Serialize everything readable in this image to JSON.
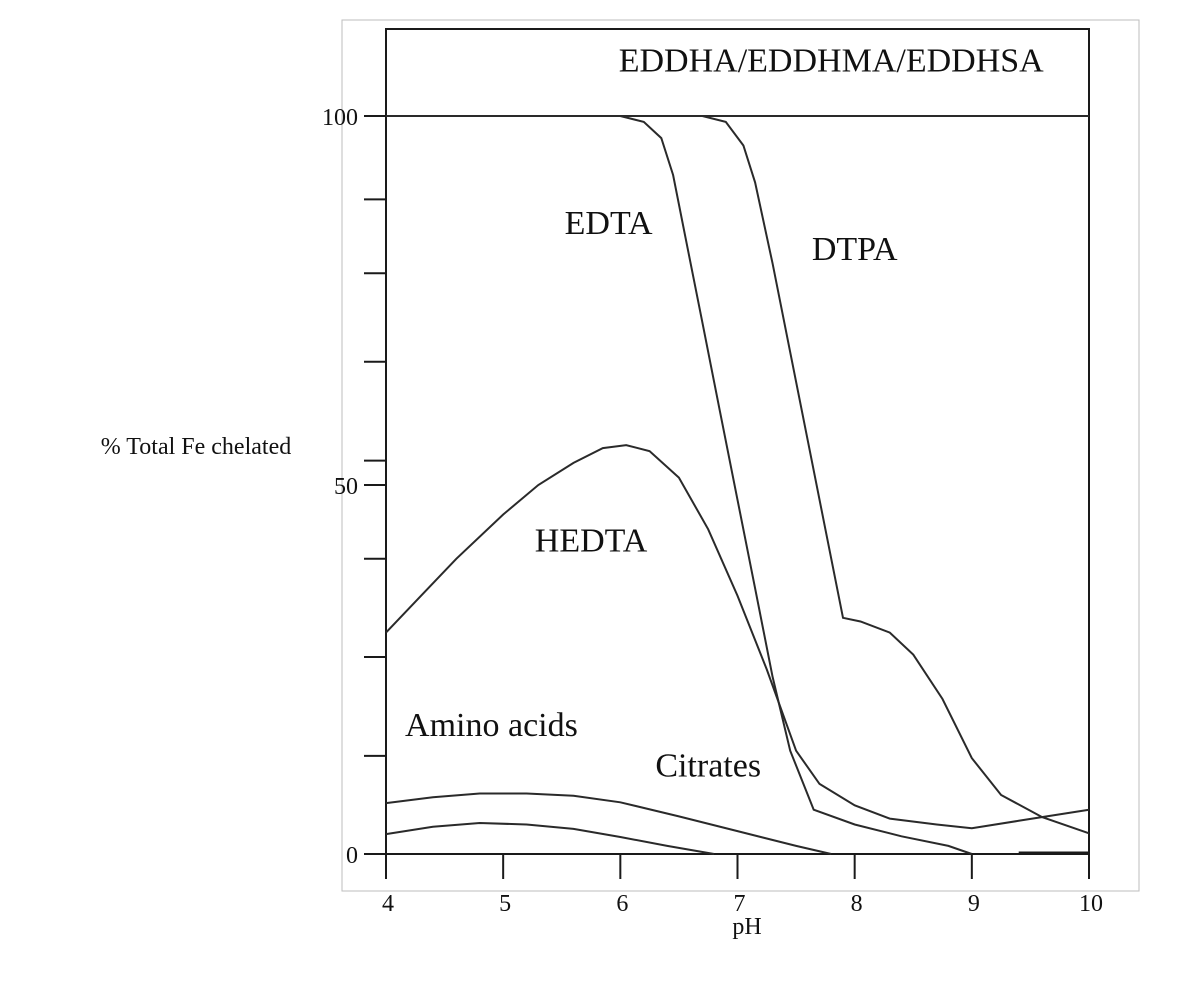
{
  "chart_data": {
    "type": "line",
    "xlabel": "pH",
    "ylabel": "% Total Fe chelated",
    "xlim": [
      4,
      10
    ],
    "ylim": [
      0,
      100
    ],
    "x_ticks": [
      4,
      5,
      6,
      7,
      8,
      9,
      10
    ],
    "x_tick_labels": [
      "4",
      "5",
      "6",
      "7",
      "8",
      "9",
      "10"
    ],
    "y_tick_values": [
      0,
      13.3,
      26.7,
      40,
      50,
      53.3,
      66.7,
      78.7,
      88.7,
      100
    ],
    "y_tick_labels": [
      {
        "value": 0,
        "label": "0"
      },
      {
        "value": 50,
        "label": "50"
      },
      {
        "value": 100,
        "label": "100"
      }
    ],
    "grid": false,
    "series": [
      {
        "name": "EDDHA/EDDHMA/EDDHSA",
        "points": [
          [
            4,
            100
          ],
          [
            10,
            100
          ]
        ]
      },
      {
        "name": "EDTA",
        "points": [
          [
            6.0,
            100
          ],
          [
            6.2,
            99.2
          ],
          [
            6.35,
            97
          ],
          [
            6.45,
            92
          ],
          [
            6.55,
            84
          ],
          [
            6.7,
            72
          ],
          [
            6.85,
            60
          ],
          [
            7.0,
            48
          ],
          [
            7.15,
            36
          ],
          [
            7.3,
            24
          ],
          [
            7.45,
            14
          ],
          [
            7.65,
            6
          ],
          [
            8.0,
            4
          ],
          [
            8.4,
            2.4
          ],
          [
            8.8,
            1.1
          ],
          [
            9.0,
            0
          ]
        ]
      },
      {
        "name": "DTPA",
        "points": [
          [
            6.7,
            100
          ],
          [
            6.9,
            99.2
          ],
          [
            7.05,
            96
          ],
          [
            7.15,
            91
          ],
          [
            7.3,
            80
          ],
          [
            7.45,
            68
          ],
          [
            7.6,
            56
          ],
          [
            7.75,
            44
          ],
          [
            7.9,
            32
          ],
          [
            8.05,
            31.5
          ],
          [
            8.3,
            30
          ],
          [
            8.5,
            27
          ],
          [
            8.75,
            21
          ],
          [
            9.0,
            13
          ],
          [
            9.25,
            8
          ],
          [
            9.6,
            5
          ],
          [
            10.0,
            2.8
          ]
        ]
      },
      {
        "name": "HEDTA",
        "points": [
          [
            4.0,
            30
          ],
          [
            4.3,
            35
          ],
          [
            4.6,
            40
          ],
          [
            5.0,
            46
          ],
          [
            5.3,
            50
          ],
          [
            5.6,
            53
          ],
          [
            5.85,
            55
          ],
          [
            6.05,
            55.4
          ],
          [
            6.25,
            54.6
          ],
          [
            6.5,
            51
          ],
          [
            6.75,
            44
          ],
          [
            7.0,
            35
          ],
          [
            7.25,
            25
          ],
          [
            7.5,
            14
          ],
          [
            7.7,
            9.5
          ],
          [
            8.0,
            6.6
          ],
          [
            8.3,
            4.8
          ],
          [
            8.7,
            4
          ],
          [
            9.0,
            3.5
          ],
          [
            9.4,
            4.5
          ],
          [
            10.0,
            6
          ]
        ]
      },
      {
        "name": "Amino acids",
        "points": [
          [
            4.0,
            6.9
          ],
          [
            4.4,
            7.7
          ],
          [
            4.8,
            8.2
          ],
          [
            5.2,
            8.2
          ],
          [
            5.6,
            7.9
          ],
          [
            6.0,
            7.0
          ],
          [
            6.5,
            5.1
          ],
          [
            7.0,
            3.1
          ],
          [
            7.5,
            1.1
          ],
          [
            7.8,
            0
          ]
        ]
      },
      {
        "name": "Citrates",
        "points": [
          [
            4.0,
            2.7
          ],
          [
            4.4,
            3.7
          ],
          [
            4.8,
            4.2
          ],
          [
            5.2,
            4.0
          ],
          [
            5.6,
            3.4
          ],
          [
            6.0,
            2.3
          ],
          [
            6.4,
            1.1
          ],
          [
            6.8,
            0
          ]
        ]
      }
    ],
    "annotations": [
      {
        "text": "EDDHA/EDDHMA/EDDHSA",
        "x": 7.8,
        "y": 106
      },
      {
        "text": "EDTA",
        "x": 5.9,
        "y": 84
      },
      {
        "text": "DTPA",
        "x": 8.0,
        "y": 80.5
      },
      {
        "text": "HEDTA",
        "x": 5.75,
        "y": 41
      },
      {
        "text": "Amino acids",
        "x": 4.9,
        "y": 16
      },
      {
        "text": "Citrates",
        "x": 6.75,
        "y": 10.5
      }
    ]
  }
}
